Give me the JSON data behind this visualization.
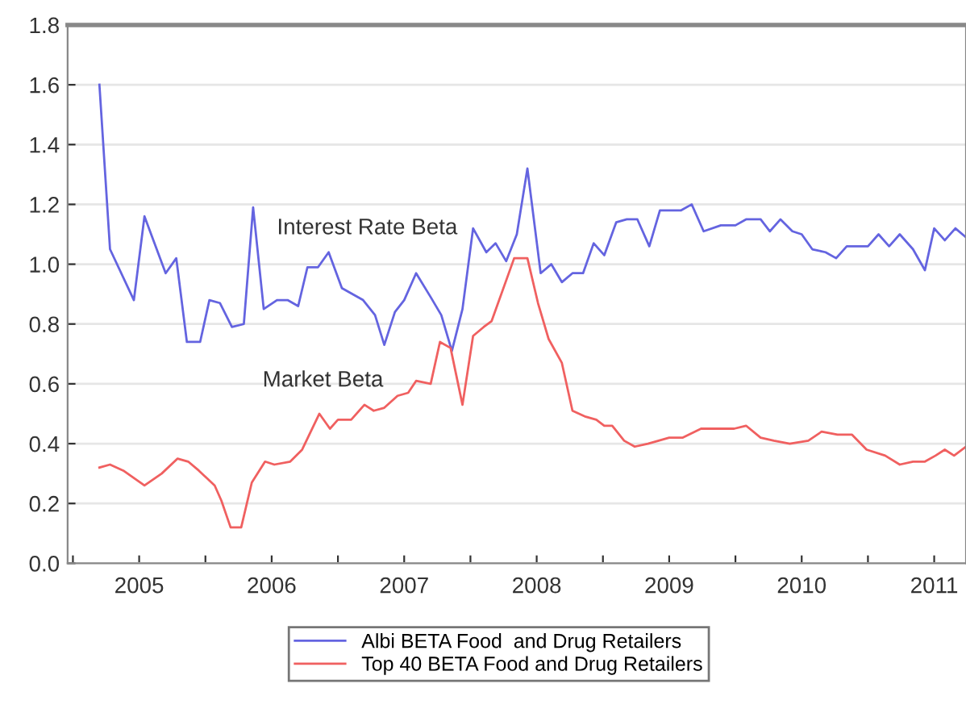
{
  "chart_data": {
    "type": "line",
    "xlim": [
      2004.96,
      2011.74
    ],
    "ylim": [
      0,
      1.8
    ],
    "yticks": [
      {
        "value": 0,
        "label": "0.0"
      },
      0.2,
      0.4,
      0.6,
      0.8,
      {
        "value": 1,
        "label": "1.0"
      },
      1.2,
      1.4,
      1.6,
      1.8
    ],
    "xticks": [
      {
        "value": 2005,
        "label": null
      },
      {
        "value": 2005.5,
        "label": "2005"
      },
      {
        "value": 2006,
        "label": null
      },
      {
        "value": 2006.5,
        "label": "2006"
      },
      {
        "value": 2007,
        "label": null
      },
      {
        "value": 2007.5,
        "label": "2007"
      },
      {
        "value": 2008,
        "label": null
      },
      {
        "value": 2008.5,
        "label": "2008"
      },
      {
        "value": 2009,
        "label": null
      },
      {
        "value": 2009.5,
        "label": "2009"
      },
      {
        "value": 2010,
        "label": null
      },
      {
        "value": 2010.5,
        "label": "2010"
      },
      {
        "value": 2011,
        "label": null
      },
      {
        "value": 2011.5,
        "label": "2011"
      }
    ],
    "grid": "y",
    "legend": "bottom",
    "marker": "none",
    "line_style": "solid",
    "annotations": [
      "Interest Rate Beta",
      "Market Beta"
    ],
    "series": [
      {
        "name": "Albi BETA Food  and Drug Retailers",
        "color": "#6464e0",
        "x": [
          2005.2,
          2005.28,
          2005.46,
          2005.54,
          2005.7,
          2005.78,
          2005.86,
          2005.96,
          2006.03,
          2006.11,
          2006.2,
          2006.29,
          2006.36,
          2006.44,
          2006.54,
          2006.62,
          2006.7,
          2006.77,
          2006.85,
          2006.93,
          2007.03,
          2007.19,
          2007.28,
          2007.35,
          2007.43,
          2007.5,
          2007.59,
          2007.7,
          2007.78,
          2007.86,
          2007.94,
          2008.02,
          2008.12,
          2008.19,
          2008.27,
          2008.35,
          2008.43,
          2008.53,
          2008.61,
          2008.69,
          2008.77,
          2008.85,
          2008.93,
          2009.01,
          2009.1,
          2009.18,
          2009.26,
          2009.35,
          2009.43,
          2009.59,
          2009.67,
          2009.76,
          2009.89,
          2010.0,
          2010.08,
          2010.19,
          2010.26,
          2010.34,
          2010.43,
          2010.5,
          2010.58,
          2010.68,
          2010.76,
          2010.84,
          2011.0,
          2011.08,
          2011.16,
          2011.24,
          2011.34,
          2011.43,
          2011.5,
          2011.58,
          2011.66,
          2011.74
        ],
        "values": [
          1.6,
          1.05,
          0.88,
          1.16,
          0.97,
          1.02,
          0.74,
          0.74,
          0.88,
          0.87,
          0.79,
          0.8,
          1.19,
          0.85,
          0.88,
          0.88,
          0.86,
          0.99,
          0.99,
          1.04,
          0.92,
          0.88,
          0.83,
          0.73,
          0.84,
          0.88,
          0.97,
          0.89,
          0.83,
          0.71,
          0.85,
          1.12,
          1.04,
          1.07,
          1.01,
          1.1,
          1.32,
          0.97,
          1.0,
          0.94,
          0.97,
          0.97,
          1.07,
          1.03,
          1.14,
          1.15,
          1.15,
          1.06,
          1.18,
          1.18,
          1.2,
          1.11,
          1.13,
          1.13,
          1.15,
          1.15,
          1.11,
          1.15,
          1.11,
          1.1,
          1.05,
          1.04,
          1.02,
          1.06,
          1.06,
          1.1,
          1.06,
          1.1,
          1.05,
          0.98,
          1.12,
          1.08,
          1.12,
          1.09
        ]
      },
      {
        "name": "Top 40 BETA Food and Drug Retailers",
        "color": "#f06060",
        "x": [
          2005.2,
          2005.28,
          2005.38,
          2005.54,
          2005.67,
          2005.79,
          2005.87,
          2005.95,
          2006.07,
          2006.12,
          2006.19,
          2006.27,
          2006.35,
          2006.45,
          2006.52,
          2006.64,
          2006.73,
          2006.86,
          2006.94,
          2007.0,
          2007.1,
          2007.2,
          2007.27,
          2007.35,
          2007.45,
          2007.53,
          2007.59,
          2007.7,
          2007.77,
          2007.85,
          2007.94,
          2008.02,
          2008.1,
          2008.16,
          2008.33,
          2008.43,
          2008.51,
          2008.59,
          2008.69,
          2008.77,
          2008.87,
          2008.95,
          2009.01,
          2009.07,
          2009.16,
          2009.24,
          2009.34,
          2009.5,
          2009.6,
          2009.74,
          2009.89,
          2009.99,
          2010.08,
          2010.19,
          2010.29,
          2010.41,
          2010.55,
          2010.65,
          2010.77,
          2010.88,
          2010.99,
          2011.13,
          2011.24,
          2011.34,
          2011.43,
          2011.51,
          2011.58,
          2011.65,
          2011.74
        ],
        "values": [
          0.32,
          0.33,
          0.31,
          0.26,
          0.3,
          0.35,
          0.34,
          0.31,
          0.26,
          0.21,
          0.12,
          0.12,
          0.27,
          0.34,
          0.33,
          0.34,
          0.38,
          0.5,
          0.45,
          0.48,
          0.48,
          0.53,
          0.51,
          0.52,
          0.56,
          0.57,
          0.61,
          0.6,
          0.74,
          0.72,
          0.53,
          0.76,
          0.79,
          0.81,
          1.02,
          1.02,
          0.87,
          0.75,
          0.67,
          0.51,
          0.49,
          0.48,
          0.46,
          0.46,
          0.41,
          0.39,
          0.4,
          0.42,
          0.42,
          0.45,
          0.45,
          0.45,
          0.46,
          0.42,
          0.41,
          0.4,
          0.41,
          0.44,
          0.43,
          0.43,
          0.38,
          0.36,
          0.33,
          0.34,
          0.34,
          0.36,
          0.38,
          0.36,
          0.39
        ]
      }
    ]
  }
}
